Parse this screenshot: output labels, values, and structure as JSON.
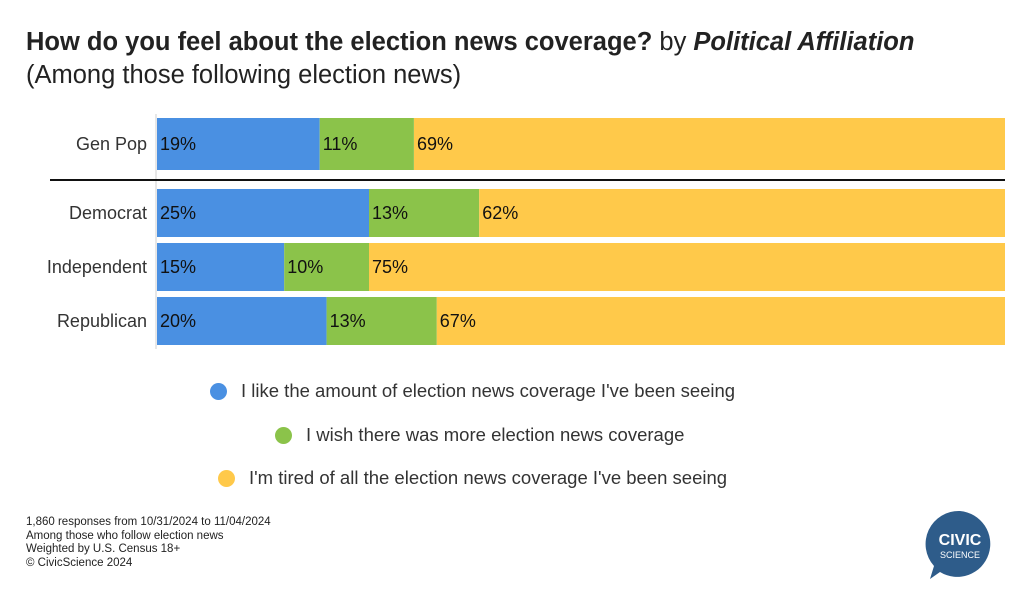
{
  "title": {
    "main": "How do you feel about the election news coverage?",
    "by": "by",
    "affiliation": "Political Affiliation",
    "sub": "(Among those following election news)"
  },
  "chart_data": {
    "type": "bar",
    "orientation": "horizontal",
    "stacked": true,
    "categories": [
      "Gen Pop",
      "Democrat",
      "Independent",
      "Republican"
    ],
    "series": [
      {
        "name": "I like the amount of election news coverage I've been seeing",
        "values": [
          19,
          25,
          15,
          20
        ],
        "labels": [
          "19%",
          "25%",
          "15%",
          "20%"
        ],
        "color": "#4a90e2"
      },
      {
        "name": "I wish there was more election news coverage",
        "values": [
          11,
          13,
          10,
          13
        ],
        "labels": [
          "11%",
          "13%",
          "10%",
          "13%"
        ],
        "color": "#8bc34a"
      },
      {
        "name": "I'm tired of all the election news coverage I've been seeing",
        "values": [
          69,
          62,
          75,
          67
        ],
        "labels": [
          "69%",
          "62%",
          "75%",
          "67%"
        ],
        "color": "#ffc94a"
      }
    ],
    "xlim": [
      0,
      100
    ],
    "legend_position": "bottom"
  },
  "footnotes": [
    "1,860 responses from 10/31/2024 to 11/04/2024",
    "Among those who follow election news",
    "Weighted by U.S. Census 18+",
    "© CivicScience 2024"
  ],
  "logo": {
    "line1": "CIVIC",
    "line2": "SCIENCE",
    "color": "#2e5c8a"
  }
}
